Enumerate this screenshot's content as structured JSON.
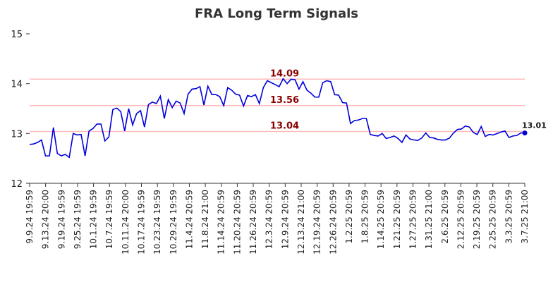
{
  "chart_data": {
    "type": "line",
    "title": "FRA Long Term Signals",
    "xlabel": "",
    "ylabel": "",
    "ylim": [
      12,
      15
    ],
    "yticks": [
      "12",
      "13",
      "14",
      "15"
    ],
    "xtick_labels": [
      "9.9.24 19:59",
      "9.13.24 20:00",
      "9.19.24 19:59",
      "9.25.24 19:59",
      "10.1.24 19:59",
      "10.7.24 19:59",
      "10.11.24 20:00",
      "10.17.24 19:59",
      "10.23.24 19:59",
      "10.29.24 19:59",
      "11.4.24 20:59",
      "11.8.24 21:00",
      "11.14.24 20:59",
      "11.20.24 20:59",
      "11.26.24 20:59",
      "12.3.24 20:59",
      "12.9.24 20:59",
      "12.13.24 21:00",
      "12.19.24 20:59",
      "12.26.24 20:59",
      "1.2.25 20:59",
      "1.8.25 20:59",
      "1.14.25 20:59",
      "1.21.25 20:59",
      "1.27.25 20:59",
      "1.31.25 21:00",
      "2.6.25 20:59",
      "2.12.25 20:59",
      "2.19.25 20:59",
      "2.25.25 20:59",
      "3.3.25 20:59",
      "3.7.25 21:00"
    ],
    "grid": false,
    "reference_lines": [
      {
        "value": 14.09,
        "label": "14.09"
      },
      {
        "value": 13.56,
        "label": "13.56"
      },
      {
        "value": 13.04,
        "label": "13.04"
      }
    ],
    "last_label": "13.01",
    "colors": {
      "line": "#0000dd",
      "reference": "#ffbbbb",
      "reference_label": "#8b0000",
      "marker": "#0000dd"
    },
    "series": [
      {
        "values": [
          12.78,
          12.79,
          12.82,
          12.87,
          12.55,
          12.55,
          13.12,
          12.6,
          12.55,
          12.58,
          12.52,
          13.0,
          12.97,
          12.98,
          12.55,
          13.05,
          13.1,
          13.19,
          13.19,
          12.85,
          12.93,
          13.48,
          13.51,
          13.44,
          13.05,
          13.5,
          13.17,
          13.4,
          13.46,
          13.13,
          13.58,
          13.63,
          13.6,
          13.75,
          13.3,
          13.68,
          13.52,
          13.65,
          13.61,
          13.4,
          13.79,
          13.89,
          13.9,
          13.94,
          13.57,
          13.95,
          13.78,
          13.78,
          13.74,
          13.56,
          13.92,
          13.87,
          13.79,
          13.77,
          13.55,
          13.76,
          13.74,
          13.78,
          13.6,
          13.92,
          14.06,
          14.02,
          13.98,
          13.94,
          14.1,
          14.0,
          14.09,
          14.08,
          13.89,
          14.04,
          13.87,
          13.81,
          13.73,
          13.73,
          14.02,
          14.06,
          14.04,
          13.78,
          13.77,
          13.62,
          13.61,
          13.2,
          13.26,
          13.27,
          13.3,
          13.3,
          12.98,
          12.96,
          12.95,
          13.0,
          12.9,
          12.92,
          12.95,
          12.9,
          12.82,
          12.97,
          12.89,
          12.87,
          12.86,
          12.91,
          13.01,
          12.92,
          12.91,
          12.88,
          12.87,
          12.87,
          12.91,
          13.01,
          13.08,
          13.09,
          13.15,
          13.13,
          13.02,
          12.98,
          13.14,
          12.94,
          12.98,
          12.97,
          13.0,
          13.03,
          13.05,
          12.92,
          12.95,
          12.96,
          13.01,
          13.01
        ]
      }
    ]
  }
}
